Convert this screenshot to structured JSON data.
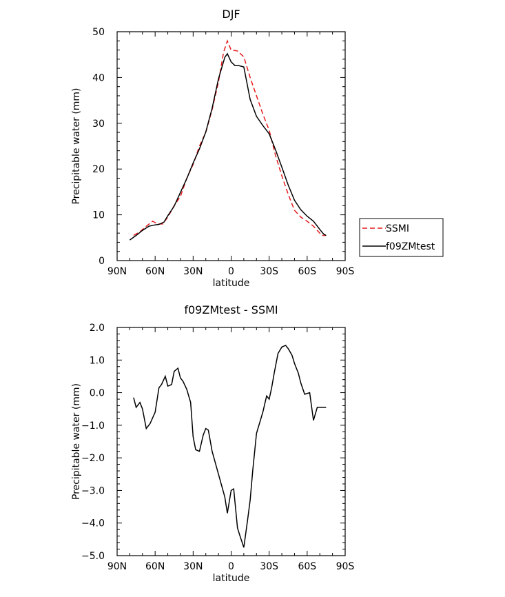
{
  "chart_data": [
    {
      "type": "line",
      "title": "DJF",
      "xlabel": "latitude",
      "ylabel": "Precipitable water (mm)",
      "xlim": [
        -90,
        90
      ],
      "ylim": [
        0,
        50
      ],
      "x_ticks": [
        -90,
        -60,
        -30,
        0,
        30,
        60,
        90
      ],
      "x_tick_labels": [
        "90N",
        "60N",
        "30N",
        "0",
        "30S",
        "60S",
        "90S"
      ],
      "y_ticks": [
        0,
        10,
        20,
        30,
        40,
        50
      ],
      "y_tick_labels": [
        "0",
        "10",
        "20",
        "30",
        "40",
        "50"
      ],
      "legend_position": "right-bottom",
      "series": [
        {
          "name": "SSMI",
          "color": "#e41a1c",
          "dash": "dashed",
          "x": [
            -77,
            -72,
            -67,
            -62,
            -58,
            -54,
            -50,
            -45,
            -40,
            -35,
            -30,
            -25,
            -20,
            -15,
            -10,
            -6,
            -3,
            0,
            5,
            10,
            15,
            20,
            25,
            30,
            35,
            40,
            45,
            50,
            55,
            60,
            65,
            70,
            72,
            75
          ],
          "y": [
            5.5,
            6.3,
            7.5,
            8.6,
            8.0,
            8.0,
            9.5,
            12,
            14,
            18,
            21,
            25,
            28,
            33,
            39,
            45.5,
            48,
            46,
            45.8,
            44.5,
            40,
            36,
            32,
            28.5,
            23,
            18.5,
            14.5,
            11,
            9.5,
            8.6,
            7.5,
            6.0,
            5.5,
            5.5
          ]
        },
        {
          "name": "f09ZMtest",
          "color": "#000000",
          "dash": "solid",
          "x": [
            -80,
            -75,
            -70,
            -65,
            -60,
            -57,
            -53,
            -50,
            -45,
            -40,
            -35,
            -30,
            -25,
            -20,
            -15,
            -10,
            -5,
            -3,
            0,
            3,
            6,
            10,
            15,
            20,
            25,
            30,
            35,
            40,
            45,
            50,
            55,
            60,
            65,
            70,
            73,
            75
          ],
          "y": [
            4.5,
            5.5,
            6.6,
            7.5,
            7.8,
            7.9,
            8.4,
            9.8,
            11.9,
            14.9,
            17.9,
            21.3,
            24.4,
            28.1,
            33.3,
            39.7,
            44.4,
            45.2,
            43.4,
            42.6,
            42.6,
            42.3,
            35.2,
            31.5,
            29.5,
            27.7,
            24.2,
            20.4,
            16.5,
            13.2,
            11.1,
            9.7,
            8.6,
            6.8,
            5.8,
            5.5
          ]
        }
      ]
    },
    {
      "type": "line",
      "title": "f09ZMtest - SSMI",
      "xlabel": "latitude",
      "ylabel": "Precipitable water (mm)",
      "xlim": [
        -90,
        90
      ],
      "ylim": [
        -5,
        2
      ],
      "x_ticks": [
        -90,
        -60,
        -30,
        0,
        30,
        60,
        90
      ],
      "x_tick_labels": [
        "90N",
        "60N",
        "30N",
        "0",
        "30S",
        "60S",
        "90S"
      ],
      "y_ticks": [
        -5,
        -4,
        -3,
        -2,
        -1,
        0,
        1,
        2
      ],
      "y_tick_labels": [
        "−5.0",
        "−4.0",
        "−3.0",
        "−2.0",
        "−1.0",
        "0.0",
        "1.0",
        "2.0"
      ],
      "series": [
        {
          "color": "#000000",
          "dash": "solid",
          "x": [
            -77,
            -75,
            -72,
            -70,
            -67,
            -64,
            -60,
            -57,
            -55,
            -52,
            -50,
            -47,
            -45,
            -42,
            -40,
            -38,
            -35,
            -32,
            -30,
            -28,
            -25,
            -22,
            -20,
            -18,
            -15,
            -10,
            -5,
            -3,
            0,
            2,
            5,
            7,
            10,
            13,
            15,
            17,
            20,
            25,
            28,
            30,
            32,
            34,
            37,
            40,
            43,
            45,
            48,
            50,
            53,
            55,
            58,
            62,
            65,
            68,
            70,
            72,
            75
          ],
          "y": [
            -0.15,
            -0.45,
            -0.3,
            -0.5,
            -1.1,
            -0.95,
            -0.6,
            0.15,
            0.25,
            0.5,
            0.2,
            0.25,
            0.65,
            0.75,
            0.45,
            0.35,
            0.1,
            -0.3,
            -1.35,
            -1.75,
            -1.8,
            -1.3,
            -1.1,
            -1.15,
            -1.8,
            -2.5,
            -3.2,
            -3.7,
            -3.0,
            -2.95,
            -4.15,
            -4.4,
            -4.75,
            -3.9,
            -3.3,
            -2.4,
            -1.25,
            -0.6,
            -0.1,
            -0.2,
            0.15,
            0.6,
            1.2,
            1.4,
            1.45,
            1.35,
            1.15,
            0.9,
            0.6,
            0.3,
            -0.05,
            0.0,
            -0.85,
            -0.45,
            -0.45,
            -0.45,
            -0.45
          ]
        }
      ]
    }
  ]
}
